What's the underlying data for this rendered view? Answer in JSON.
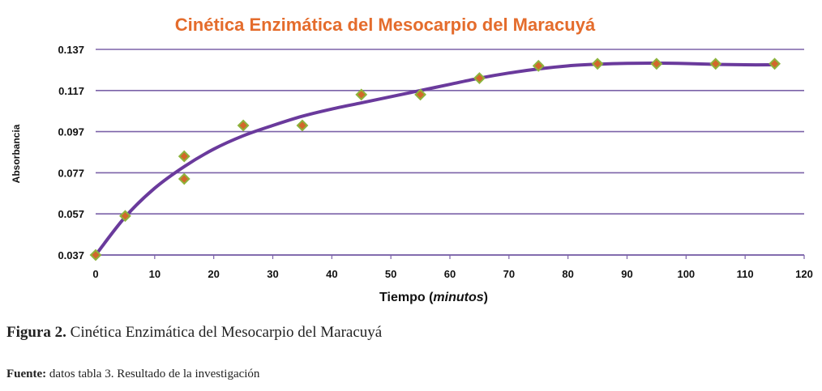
{
  "chart_data": {
    "type": "scatter",
    "title": "Cinética Enzimática del Mesocarpio del Maracuyá",
    "xlabel_main": "Tiempo (",
    "xlabel_italic": "minutos",
    "xlabel_end": ")",
    "ylabel": "Absorbancia",
    "xlim": [
      0,
      120
    ],
    "ylim": [
      0.037,
      0.137
    ],
    "x_ticks": [
      "0",
      "10",
      "20",
      "30",
      "40",
      "50",
      "60",
      "70",
      "80",
      "90",
      "100",
      "110",
      "120"
    ],
    "y_ticks": [
      "0.037",
      "0.057",
      "0.077",
      "0.097",
      "0.117",
      "0.137"
    ],
    "grid": "horizontal",
    "points": [
      {
        "x": 0,
        "y": 0.037
      },
      {
        "x": 5,
        "y": 0.056
      },
      {
        "x": 15,
        "y": 0.085
      },
      {
        "x": 15,
        "y": 0.074
      },
      {
        "x": 25,
        "y": 0.1
      },
      {
        "x": 35,
        "y": 0.1
      },
      {
        "x": 45,
        "y": 0.115
      },
      {
        "x": 55,
        "y": 0.115
      },
      {
        "x": 65,
        "y": 0.123
      },
      {
        "x": 75,
        "y": 0.129
      },
      {
        "x": 85,
        "y": 0.13
      },
      {
        "x": 95,
        "y": 0.13
      },
      {
        "x": 105,
        "y": 0.13
      },
      {
        "x": 115,
        "y": 0.13
      }
    ],
    "trendline": {
      "x": [
        0,
        5,
        10,
        15,
        20,
        25,
        30,
        35,
        40,
        45,
        50,
        55,
        60,
        65,
        70,
        75,
        80,
        85,
        90,
        95,
        100,
        105,
        110,
        115
      ],
      "y": [
        0.037,
        0.0555,
        0.0695,
        0.08,
        0.0885,
        0.095,
        0.1,
        0.1045,
        0.108,
        0.111,
        0.114,
        0.117,
        0.12,
        0.123,
        0.1255,
        0.1275,
        0.129,
        0.1298,
        0.1302,
        0.1303,
        0.1301,
        0.1297,
        0.1295,
        0.1295
      ]
    },
    "colors": {
      "grid": "#7B62A8",
      "trend": "#6A3A9C",
      "marker_fill": "#D2682A",
      "marker_edge": "#8DB43C",
      "title": "#E46C2C"
    }
  },
  "caption": {
    "figure_label": "Figura 2.",
    "figure_text": " Cinética Enzimática del Mesocarpio del Maracuyá",
    "source_label": "Fuente:",
    "source_text": " datos tabla 3. Resultado de la investigación"
  }
}
